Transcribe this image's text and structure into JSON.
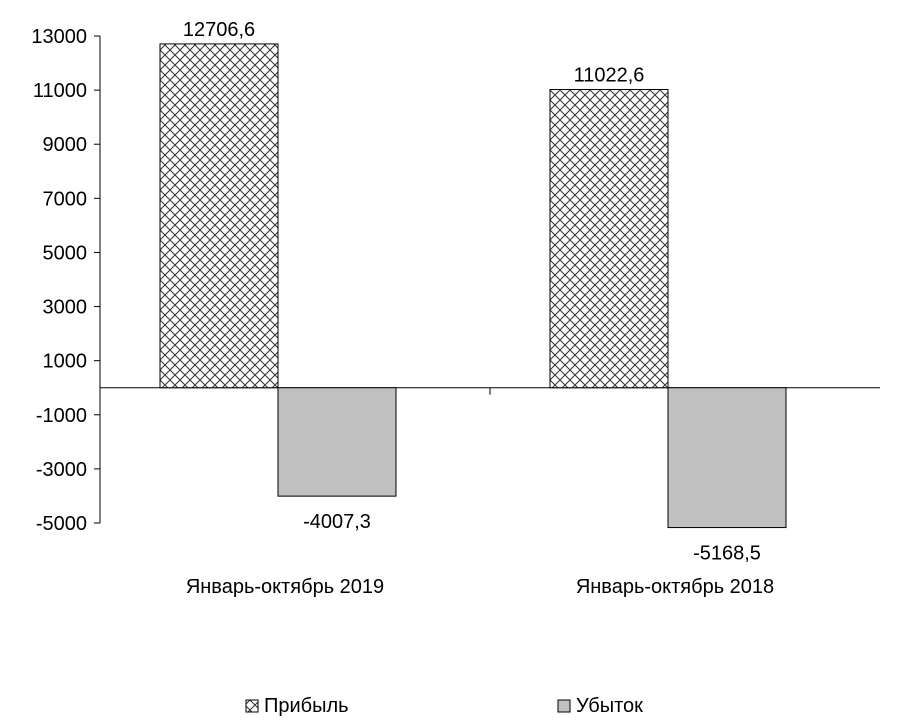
{
  "chart_data": {
    "type": "bar",
    "categories": [
      "Январь-октябрь 2019",
      "Январь-октябрь 2018"
    ],
    "series": [
      {
        "name": "Прибыль",
        "values": [
          12706.6,
          11022.6
        ],
        "labels": [
          "12706,6",
          "11022,6"
        ],
        "fill": "hatch"
      },
      {
        "name": "Убыток",
        "values": [
          -4007.3,
          -5168.5
        ],
        "labels": [
          "-4007,3",
          "-5168,5"
        ],
        "fill": "#c0c0c0"
      }
    ],
    "ylim": [
      -5000,
      13000
    ],
    "yticks": [
      13000,
      11000,
      9000,
      7000,
      5000,
      3000,
      1000,
      -1000,
      -3000,
      -5000
    ],
    "xlabel": "",
    "ylabel": "",
    "grid": false,
    "legend": "bottom"
  }
}
